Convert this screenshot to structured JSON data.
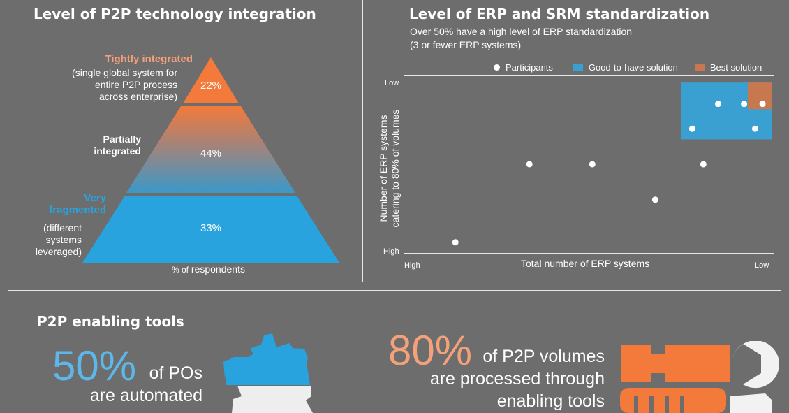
{
  "left_panel": {
    "title": "Level of P2P technology integration",
    "pyramid_chart": {
      "type": "pyramid",
      "tiers": [
        {
          "name": "Tightly integrated",
          "description": "(single global system for entire P2P process across enterprise)",
          "desc_lines": [
            "(single global system for",
            "entire P2P process",
            "across enterprise)"
          ],
          "value": 22,
          "label": "22%",
          "color": "#f37a3a"
        },
        {
          "name": "Partially integrated",
          "name_lines": [
            "Partially",
            "integrated"
          ],
          "value": 44,
          "label": "44%",
          "color": "#7a8fa0"
        },
        {
          "name": "Very fragmented",
          "name_lines": [
            "Very",
            "fragmented"
          ],
          "description": "(different systems leveraged)",
          "desc_lines": [
            "(different",
            "systems",
            "leveraged)"
          ],
          "value": 33,
          "label": "33%",
          "color": "#29a3dd"
        }
      ],
      "x_caption_small": "% of",
      "x_caption": "respondents"
    }
  },
  "right_panel": {
    "title": "Level of ERP and SRM standardization",
    "subtitle_line1": "Over 50% have a high level of ERP standardization",
    "subtitle_line2": "(3 or fewer ERP systems)"
  },
  "chart_data": {
    "type": "scatter",
    "title": "Level of ERP and SRM standardization",
    "xlabel": "Total number of ERP systems",
    "ylabel": "Number of ERP systems catering to 80% of volumes",
    "ylabel_line1": "Number of ERP systems",
    "ylabel_line2": "catering to 80% of volumes",
    "x_ticks": {
      "start": "High",
      "end": "Low"
    },
    "y_ticks": {
      "top": "Low",
      "bottom": "High"
    },
    "xlim": [
      0,
      100
    ],
    "ylim": [
      0,
      100
    ],
    "legend": [
      {
        "name": "Participants",
        "color": "#ffffff",
        "shape": "dot"
      },
      {
        "name": "Good-to-have solution",
        "color": "#3aa0d2",
        "shape": "square"
      },
      {
        "name": "Best solution",
        "color": "#c8784e",
        "shape": "square"
      }
    ],
    "legend_position": "top-right",
    "regions": [
      {
        "name": "Good-to-have solution",
        "x": [
          75,
          100
        ],
        "y": [
          64,
          96
        ],
        "color": "#3aa0d2"
      },
      {
        "name": "Best solution",
        "x": [
          93,
          100
        ],
        "y": [
          81,
          96
        ],
        "color": "#c8784e"
      }
    ],
    "series": [
      {
        "name": "Participants",
        "points": [
          {
            "x": 14,
            "y": 6
          },
          {
            "x": 34,
            "y": 50
          },
          {
            "x": 51,
            "y": 50
          },
          {
            "x": 68,
            "y": 30
          },
          {
            "x": 81,
            "y": 50
          },
          {
            "x": 78,
            "y": 70
          },
          {
            "x": 85,
            "y": 84
          },
          {
            "x": 92,
            "y": 84
          },
          {
            "x": 97,
            "y": 84
          },
          {
            "x": 95,
            "y": 70
          }
        ]
      }
    ]
  },
  "bottom_left": {
    "title": "P2P enabling tools",
    "stat_value": "50%",
    "stat_text_line1": "of POs",
    "stat_text_line2": "are automated",
    "stat_color": "#5db7e8",
    "icon": "gear-icon"
  },
  "bottom_right": {
    "stat_value": "80%",
    "stat_text_line1": "of P2P volumes",
    "stat_text_line2": "are processed through",
    "stat_text_line3": "enabling tools",
    "stat_color": "#f4a07a",
    "icons": [
      "wrench-icon",
      "screwdriver-icon"
    ]
  }
}
